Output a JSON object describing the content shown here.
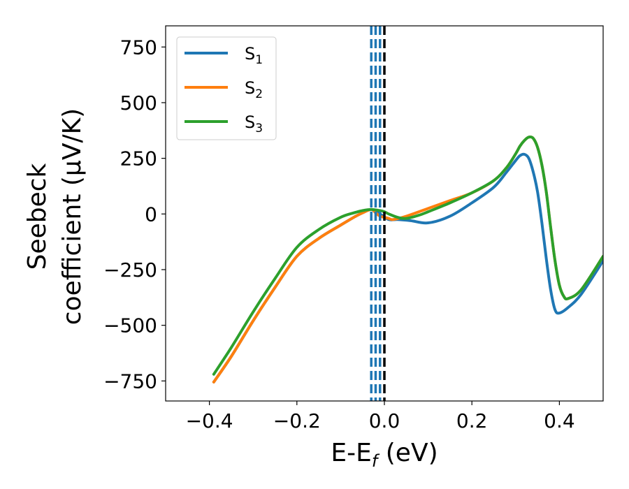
{
  "chart_data": {
    "type": "line",
    "xlabel": "E-E",
    "xlabel_sub": "f",
    "xlabel_unit": " (eV)",
    "ylabel_line1": "Seebeck",
    "ylabel_line2": "coefficient  (μV/K)",
    "xlim": [
      -0.5,
      0.5
    ],
    "ylim": [
      -840,
      845
    ],
    "xticks": [
      -0.4,
      -0.2,
      0.0,
      0.2,
      0.4
    ],
    "xtick_labels": [
      "−0.4",
      "−0.2",
      "0.0",
      "0.2",
      "0.4"
    ],
    "yticks": [
      750,
      500,
      250,
      0,
      -250,
      -500,
      -750
    ],
    "ytick_labels": [
      "750",
      "500",
      "250",
      "0",
      "−250",
      "−500",
      "−750"
    ],
    "grid": false,
    "legend_position": "top-left",
    "series": [
      {
        "name": "S",
        "sub": "1",
        "color": "#1f77b4",
        "x": [
          -0.39,
          -0.35,
          -0.3,
          -0.25,
          -0.2,
          -0.15,
          -0.1,
          -0.07,
          -0.05,
          -0.03,
          -0.01,
          0.01,
          0.03,
          0.06,
          0.1,
          0.15,
          0.2,
          0.25,
          0.28,
          0.3,
          0.31,
          0.32,
          0.33,
          0.34,
          0.35,
          0.36,
          0.37,
          0.38,
          0.39,
          0.4,
          0.42,
          0.45,
          0.5
        ],
        "y": [
          -755,
          -640,
          -480,
          -330,
          -190,
          -110,
          -50,
          -15,
          5,
          20,
          0,
          -25,
          -25,
          -30,
          -40,
          -10,
          50,
          120,
          190,
          240,
          262,
          268,
          250,
          190,
          100,
          -40,
          -200,
          -340,
          -430,
          -445,
          -420,
          -360,
          -210
        ]
      },
      {
        "name": "S",
        "sub": "2",
        "color": "#ff7f0e",
        "x": [
          -0.39,
          -0.35,
          -0.3,
          -0.25,
          -0.2,
          -0.15,
          -0.1,
          -0.07,
          -0.05,
          -0.03,
          -0.02,
          -0.01,
          0.0,
          0.01,
          0.02,
          0.05,
          0.1,
          0.15,
          0.2,
          0.25,
          0.28,
          0.3,
          0.31,
          0.32,
          0.33,
          0.34,
          0.35,
          0.36,
          0.37,
          0.38,
          0.39,
          0.4,
          0.41,
          0.42,
          0.45,
          0.5
        ],
        "y": [
          -755,
          -640,
          -480,
          -330,
          -190,
          -110,
          -50,
          -15,
          5,
          20,
          5,
          -10,
          -15,
          -20,
          -25,
          -10,
          25,
          60,
          95,
          150,
          210,
          270,
          305,
          330,
          345,
          340,
          300,
          220,
          100,
          -60,
          -210,
          -320,
          -370,
          -380,
          -340,
          -190
        ]
      },
      {
        "name": "S",
        "sub": "3",
        "color": "#2ca02c",
        "x": [
          -0.39,
          -0.35,
          -0.3,
          -0.25,
          -0.2,
          -0.15,
          -0.1,
          -0.07,
          -0.05,
          -0.03,
          -0.01,
          0.0,
          0.01,
          0.03,
          0.05,
          0.08,
          0.1,
          0.15,
          0.2,
          0.25,
          0.28,
          0.3,
          0.31,
          0.32,
          0.33,
          0.34,
          0.35,
          0.36,
          0.37,
          0.38,
          0.39,
          0.4,
          0.41,
          0.42,
          0.45,
          0.5
        ],
        "y": [
          -720,
          -600,
          -440,
          -290,
          -150,
          -70,
          -15,
          5,
          15,
          20,
          15,
          10,
          0,
          -15,
          -20,
          -5,
          10,
          50,
          95,
          150,
          210,
          270,
          305,
          330,
          345,
          340,
          300,
          220,
          100,
          -60,
          -210,
          -320,
          -370,
          -380,
          -340,
          -190
        ]
      }
    ],
    "vlines": [
      {
        "x": -0.03,
        "color": "#1f77b4",
        "style": "dashed"
      },
      {
        "x": -0.02,
        "color": "#1f77b4",
        "style": "dashed"
      },
      {
        "x": -0.01,
        "color": "#1f77b4",
        "style": "dashed"
      },
      {
        "x": 0.0,
        "color": "#000000",
        "style": "dashed"
      }
    ]
  }
}
